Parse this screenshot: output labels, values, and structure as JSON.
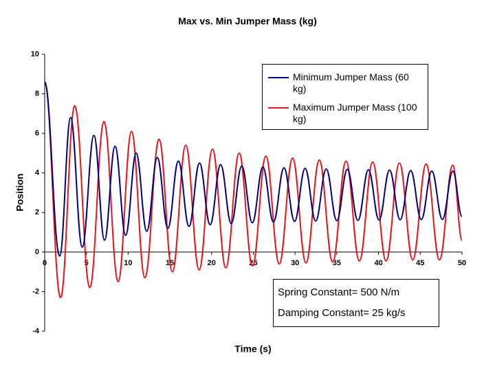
{
  "chart_data": {
    "type": "line",
    "title": "Max vs. Min Jumper Mass (kg)",
    "xlabel": "Time (s)",
    "ylabel": "Position",
    "xlim": [
      0,
      50
    ],
    "xticks": [
      0,
      5,
      10,
      15,
      20,
      25,
      30,
      35,
      40,
      45,
      50
    ],
    "ylim": [
      -4,
      10
    ],
    "yticks": [
      -4,
      -2,
      0,
      2,
      4,
      6,
      8,
      10
    ],
    "grid": false,
    "legend": "upper right",
    "annotations": [
      "Spring Constant= 500 N/m",
      "Damping Constant= 25 kg/s"
    ],
    "series": [
      {
        "name": "Minimum Jumper Mass (60 kg)",
        "color": "#000080",
        "x": [
          0,
          1.8,
          3.1,
          4.5,
          5.9,
          7.17,
          8.43,
          9.7,
          10.96,
          12.23,
          13.49,
          14.76,
          16.02,
          17.29,
          18.55,
          19.82,
          21.08,
          22.35,
          23.61,
          24.88,
          26.14,
          27.41,
          28.67,
          29.94,
          31.2,
          32.47,
          33.73,
          35.0,
          36.26,
          37.53,
          38.79,
          40.06,
          41.32,
          42.59,
          43.85,
          45.12,
          46.38,
          47.65,
          48.91,
          50
        ],
        "values": [
          8.6,
          -0.2,
          6.8,
          0.25,
          5.9,
          0.6,
          5.35,
          0.85,
          5.0,
          1.05,
          4.78,
          1.2,
          4.6,
          1.3,
          4.5,
          1.38,
          4.42,
          1.44,
          4.35,
          1.48,
          4.3,
          1.52,
          4.26,
          1.55,
          4.23,
          1.57,
          4.2,
          1.59,
          4.18,
          1.6,
          4.16,
          1.62,
          4.14,
          1.63,
          4.12,
          1.64,
          4.1,
          1.65,
          4.1,
          1.8
        ]
      },
      {
        "name": "Maximum Jumper Mass (100 kg)",
        "color": "#e8141c",
        "x": [
          0,
          1.9,
          3.6,
          5.4,
          7.1,
          8.8,
          10.4,
          12.0,
          13.7,
          15.3,
          16.9,
          18.5,
          20.1,
          21.7,
          23.3,
          24.9,
          26.5,
          28.1,
          29.7,
          31.3,
          32.9,
          34.5,
          36.1,
          37.7,
          39.3,
          40.9,
          42.5,
          44.1,
          45.7,
          47.3,
          48.9,
          50
        ],
        "values": [
          8.6,
          -2.3,
          7.4,
          -1.8,
          6.6,
          -1.5,
          6.1,
          -1.3,
          5.7,
          -1.0,
          5.4,
          -0.9,
          5.2,
          -0.8,
          5.0,
          -0.7,
          4.85,
          -0.6,
          4.75,
          -0.55,
          4.65,
          -0.5,
          4.6,
          -0.45,
          4.55,
          -0.45,
          4.5,
          -0.4,
          4.45,
          -0.4,
          4.4,
          0.6
        ]
      }
    ]
  }
}
